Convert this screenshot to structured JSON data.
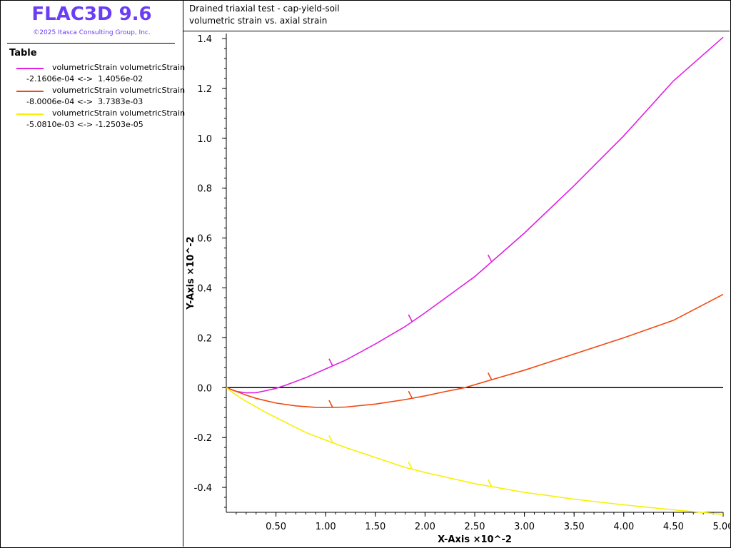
{
  "app": {
    "title": "FLAC3D 9.6",
    "copyright": "©2025 Itasca Consulting Group, Inc."
  },
  "legend": {
    "heading": "Table",
    "items": [
      {
        "label": "volumetricStrain volumetricStrain",
        "range": "-2.1606e-04 <->  1.4056e-02",
        "color": "#e020e0"
      },
      {
        "label": "volumetricStrain volumetricStrain",
        "range": "-8.0006e-04 <->  3.7383e-03",
        "color": "#f04810"
      },
      {
        "label": "volumetricStrain volumetricStrain",
        "range": "-5.0810e-03 <-> -1.2503e-05",
        "color": "#f8f000"
      }
    ]
  },
  "plot": {
    "title_line1": "Drained triaxial test - cap-yield-soil",
    "title_line2": "volumetric strain vs. axial strain"
  },
  "chart_data": {
    "type": "line",
    "xlabel": "X-Axis ×10^-2",
    "ylabel": "Y-Axis ×10^-2",
    "xlim": [
      0,
      5.0
    ],
    "ylim": [
      -0.5,
      1.42
    ],
    "xticks": [
      0.5,
      1.0,
      1.5,
      2.0,
      2.5,
      3.0,
      3.5,
      4.0,
      4.5,
      5.0
    ],
    "xtick_labels": [
      "0.50",
      "1.00",
      "1.50",
      "2.00",
      "2.50",
      "3.00",
      "3.50",
      "4.00",
      "4.50",
      "5.00"
    ],
    "yticks": [
      -0.4,
      -0.2,
      0.0,
      0.2,
      0.4,
      0.6,
      0.8,
      1.0,
      1.2,
      1.4
    ],
    "ytick_labels": [
      "-0.4",
      "-0.2",
      "0.0",
      "0.2",
      "0.4",
      "0.6",
      "0.8",
      "1.0",
      "1.2",
      "1.4"
    ],
    "zero_line": true,
    "series": [
      {
        "color": "#e020e0",
        "marker_x": [
          1.07,
          1.87,
          2.67
        ],
        "x": [
          0,
          0.1,
          0.2,
          0.3,
          0.4,
          0.5,
          0.6,
          0.8,
          1.0,
          1.2,
          1.5,
          1.8,
          2.0,
          2.5,
          3.0,
          3.5,
          4.0,
          4.5,
          5.0
        ],
        "y": [
          0,
          -0.015,
          -0.021,
          -0.02,
          -0.012,
          -0.003,
          0.01,
          0.04,
          0.075,
          0.11,
          0.175,
          0.245,
          0.3,
          0.445,
          0.62,
          0.81,
          1.01,
          1.23,
          1.405
        ]
      },
      {
        "color": "#f04810",
        "marker_x": [
          1.07,
          1.87,
          2.67
        ],
        "x": [
          0,
          0.1,
          0.2,
          0.3,
          0.5,
          0.7,
          0.9,
          1.0,
          1.2,
          1.5,
          1.8,
          2.0,
          2.2,
          2.4,
          2.7,
          3.0,
          3.5,
          4.0,
          4.5,
          5.0
        ],
        "y": [
          0,
          -0.015,
          -0.03,
          -0.043,
          -0.062,
          -0.073,
          -0.079,
          -0.08,
          -0.078,
          -0.066,
          -0.048,
          -0.033,
          -0.016,
          0.0,
          0.035,
          0.07,
          0.135,
          0.2,
          0.27,
          0.374
        ]
      },
      {
        "color": "#f8f000",
        "marker_x": [
          1.07,
          1.87,
          2.67
        ],
        "x": [
          0,
          0.1,
          0.2,
          0.4,
          0.6,
          0.8,
          1.0,
          1.2,
          1.5,
          1.8,
          2.0,
          2.5,
          3.0,
          3.5,
          4.0,
          4.5,
          5.0
        ],
        "y": [
          0,
          -0.03,
          -0.055,
          -0.1,
          -0.14,
          -0.18,
          -0.21,
          -0.24,
          -0.28,
          -0.32,
          -0.34,
          -0.385,
          -0.42,
          -0.447,
          -0.47,
          -0.49,
          -0.508
        ]
      }
    ]
  }
}
